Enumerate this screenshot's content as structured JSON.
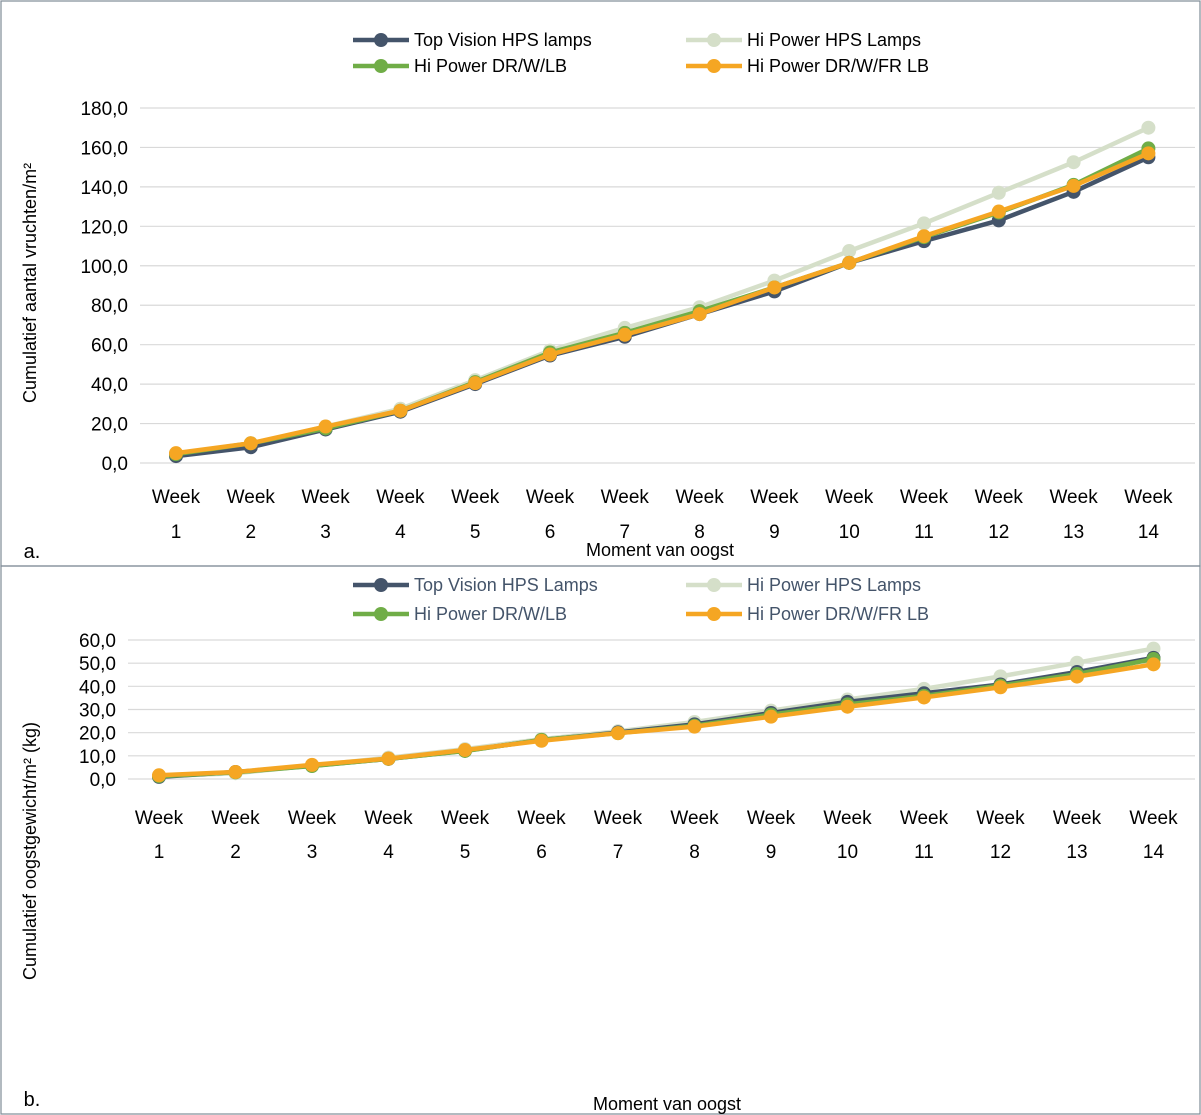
{
  "chart_data": [
    {
      "type": "line",
      "panel_label": "a.",
      "xlabel": "Moment van oogst",
      "ylabel": "Cumulatief aantal vruchten/m²",
      "ylim": [
        0,
        180
      ],
      "yticks": [
        "0,0",
        "20,0",
        "40,0",
        "60,0",
        "80,0",
        "100,0",
        "120,0",
        "140,0",
        "160,0",
        "180,0"
      ],
      "categories": [
        [
          "Week",
          "1"
        ],
        [
          "Week",
          "2"
        ],
        [
          "Week",
          "3"
        ],
        [
          "Week",
          "4"
        ],
        [
          "Week",
          "5"
        ],
        [
          "Week",
          "6"
        ],
        [
          "Week",
          "7"
        ],
        [
          "Week",
          "8"
        ],
        [
          "Week",
          "9"
        ],
        [
          "Week",
          "10"
        ],
        [
          "Week",
          "11"
        ],
        [
          "Week",
          "12"
        ],
        [
          "Week",
          "13"
        ],
        [
          "Week",
          "14"
        ]
      ],
      "grid": true,
      "legend_position": "top",
      "series": [
        {
          "name": "Hi Power HPS Lamps",
          "color": "#d5dfc9",
          "values": [
            4.5,
            9.5,
            18.5,
            27.5,
            42,
            57,
            68.5,
            79,
            92.5,
            107.5,
            121.5,
            137,
            152.5,
            170
          ]
        },
        {
          "name": "Top Vision HPS lamps",
          "color": "#44546a",
          "values": [
            3.5,
            8,
            17,
            26,
            40,
            54.5,
            64,
            75.5,
            87,
            101.5,
            112.5,
            123,
            137.5,
            155
          ]
        },
        {
          "name": "Hi Power DR/W/LB",
          "color": "#70ad47",
          "values": [
            4.5,
            10,
            17.5,
            26.5,
            41,
            56,
            66,
            77,
            89,
            101.5,
            114.5,
            127,
            141,
            159.5
          ]
        },
        {
          "name": "Hi Power DR/W/FR LB",
          "color": "#f5a623",
          "values": [
            5,
            10,
            18.5,
            26.5,
            40.5,
            55,
            65,
            75.5,
            89,
            101.5,
            115,
            127.5,
            140.5,
            157
          ]
        }
      ],
      "legend_order": [
        1,
        0,
        2,
        3
      ]
    },
    {
      "type": "line",
      "panel_label": "b.",
      "xlabel": "Moment van oogst",
      "ylabel": "Cumulatief oogstgewicht/m² (kg)",
      "ylim": [
        0,
        60
      ],
      "yticks": [
        "0,0",
        "10,0",
        "20,0",
        "30,0",
        "40,0",
        "50,0",
        "60,0"
      ],
      "categories": [
        [
          "Week",
          "1"
        ],
        [
          "Week",
          "2"
        ],
        [
          "Week",
          "3"
        ],
        [
          "Week",
          "4"
        ],
        [
          "Week",
          "5"
        ],
        [
          "Week",
          "6"
        ],
        [
          "Week",
          "7"
        ],
        [
          "Week",
          "8"
        ],
        [
          "Week",
          "9"
        ],
        [
          "Week",
          "10"
        ],
        [
          "Week",
          "11"
        ],
        [
          "Week",
          "12"
        ],
        [
          "Week",
          "13"
        ],
        [
          "Week",
          "14"
        ]
      ],
      "grid": true,
      "legend_position": "top",
      "series": [
        {
          "name": "Hi Power HPS Lamps",
          "color": "#d5dfc9",
          "values": [
            1.2,
            2.5,
            5.8,
            9.2,
            12.9,
            17.2,
            20.6,
            24.6,
            29.5,
            34.3,
            38.9,
            44.3,
            50.2,
            56.3
          ]
        },
        {
          "name": "Top Vision HPS Lamps",
          "color": "#44546a",
          "values": [
            0.9,
            3,
            5.7,
            8.7,
            12.2,
            16.8,
            20.1,
            23.6,
            28.5,
            33.3,
            37,
            40.8,
            46.2,
            52.3
          ]
        },
        {
          "name": "Hi Power DR/W/LB",
          "color": "#70ad47",
          "values": [
            1.2,
            2.9,
            5.6,
            8.7,
            12.1,
            16.9,
            19.8,
            23,
            27.8,
            32.2,
            35.9,
            40.3,
            45.3,
            51.8
          ]
        },
        {
          "name": "Hi Power DR/W/FR LB",
          "color": "#f5a623",
          "values": [
            1.6,
            3,
            6.1,
            8.8,
            12.5,
            16.5,
            19.8,
            22.6,
            26.9,
            31.2,
            35.2,
            39.6,
            44.2,
            49.5
          ]
        }
      ],
      "legend_order": [
        1,
        0,
        2,
        3
      ]
    }
  ]
}
